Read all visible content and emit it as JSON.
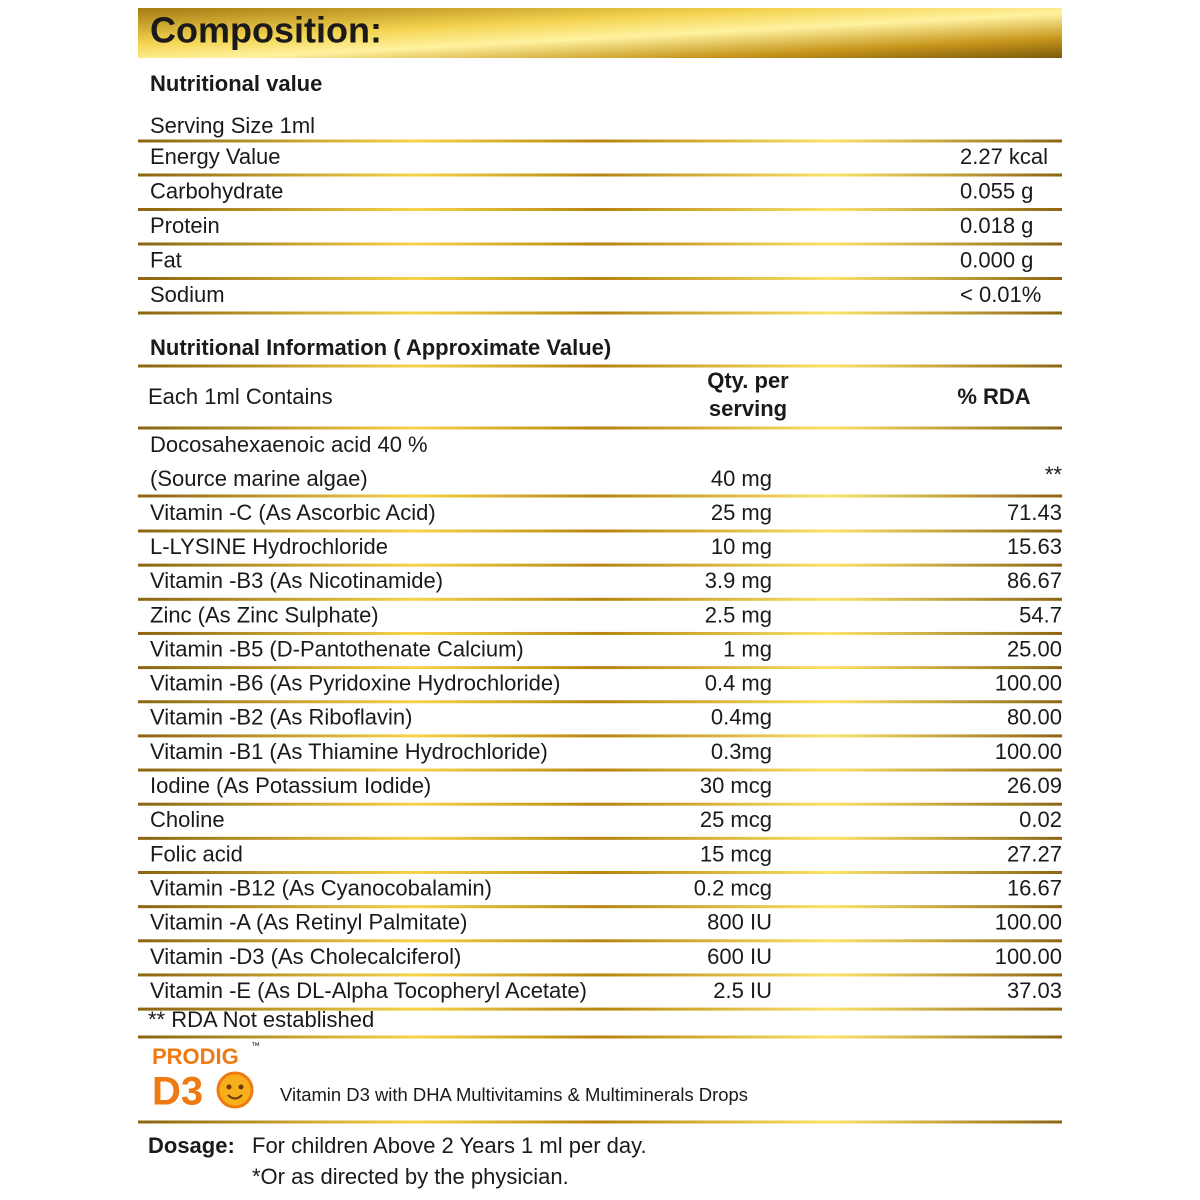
{
  "header": {
    "title": "Composition:"
  },
  "nutrition": {
    "title": "Nutritional value",
    "serving": "Serving Size 1ml",
    "rows": [
      [
        "Energy  Value",
        "2.27 kcal"
      ],
      [
        "Carbohydrate",
        "0.055 g"
      ],
      [
        "Protein",
        "0.018 g"
      ],
      [
        "Fat",
        "0.000 g"
      ],
      [
        "Sodium",
        "< 0.01%"
      ]
    ]
  },
  "info": {
    "title": "Nutritional Information ( Approximate Value)",
    "columns": [
      "Each 1ml Contains",
      [
        "Qty. per",
        "serving"
      ],
      "% RDA"
    ],
    "first": {
      "lines": [
        "Docosahexaenoic acid 40 %",
        "(Source marine algae)"
      ],
      "qty": "40 mg",
      "rda": "**"
    },
    "rows": [
      [
        "Vitamin -C (As Ascorbic Acid)",
        "25 mg",
        "71.43"
      ],
      [
        "L-LYSINE Hydrochloride",
        "10 mg",
        "15.63"
      ],
      [
        "Vitamin -B3 (As Nicotinamide)",
        "3.9 mg",
        "86.67"
      ],
      [
        "Zinc (As Zinc Sulphate)",
        "2.5 mg",
        "54.7"
      ],
      [
        "Vitamin -B5 (D-Pantothenate Calcium)",
        "1 mg",
        "25.00"
      ],
      [
        "Vitamin -B6 (As Pyridoxine Hydrochloride)",
        "0.4 mg",
        "100.00"
      ],
      [
        "Vitamin -B2 (As Riboflavin)",
        "0.4mg",
        "80.00"
      ],
      [
        "Vitamin -B1 (As Thiamine Hydrochloride)",
        "0.3mg",
        "100.00"
      ],
      [
        "Iodine (As Potassium Iodide)",
        "30 mcg",
        "26.09"
      ],
      [
        "Choline",
        "25 mcg",
        "0.02"
      ],
      [
        "Folic acid",
        "15 mcg",
        "27.27"
      ],
      [
        "Vitamin -B12 (As Cyanocobalamin)",
        "0.2 mcg",
        "16.67"
      ],
      [
        "Vitamin -A (As Retinyl Palmitate)",
        "800 IU",
        "100.00"
      ],
      [
        "Vitamin -D3 (As Cholecalciferol)",
        "600 IU",
        "100.00"
      ],
      [
        "Vitamin -E (As DL-Alpha Tocopheryl Acetate)",
        "2.5 IU",
        "37.03"
      ]
    ],
    "footnote": "** RDA Not established"
  },
  "product": {
    "brand": "PRODIG",
    "tm": "™",
    "name": "D3",
    "caption": "Vitamin D3 with DHA Multivitamins & Multiminerals Drops"
  },
  "dosage": {
    "label": "Dosage:",
    "text": "For children Above 2 Years 1 ml per day.",
    "note": "*Or as directed by the physician."
  }
}
